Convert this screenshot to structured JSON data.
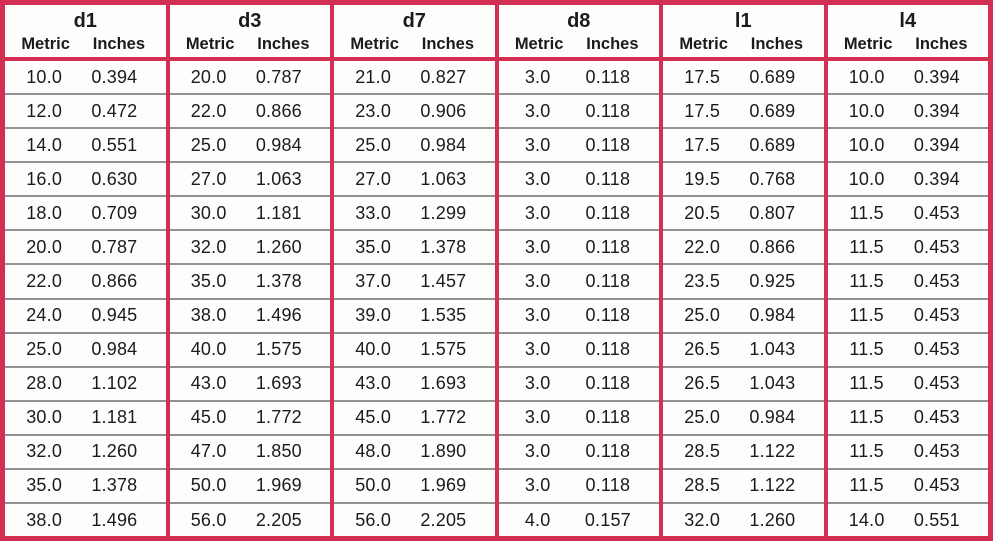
{
  "colors": {
    "border_red": "#d32e53",
    "row_line": "#929292",
    "text": "#1b1b1b",
    "background": "#fdfdfb"
  },
  "table": {
    "sub_headers": [
      "Metric",
      "Inches"
    ],
    "groups": [
      {
        "title": "d1",
        "rows": [
          [
            "10.0",
            "0.394"
          ],
          [
            "12.0",
            "0.472"
          ],
          [
            "14.0",
            "0.551"
          ],
          [
            "16.0",
            "0.630"
          ],
          [
            "18.0",
            "0.709"
          ],
          [
            "20.0",
            "0.787"
          ],
          [
            "22.0",
            "0.866"
          ],
          [
            "24.0",
            "0.945"
          ],
          [
            "25.0",
            "0.984"
          ],
          [
            "28.0",
            "1.102"
          ],
          [
            "30.0",
            "1.181"
          ],
          [
            "32.0",
            "1.260"
          ],
          [
            "35.0",
            "1.378"
          ],
          [
            "38.0",
            "1.496"
          ]
        ]
      },
      {
        "title": "d3",
        "rows": [
          [
            "20.0",
            "0.787"
          ],
          [
            "22.0",
            "0.866"
          ],
          [
            "25.0",
            "0.984"
          ],
          [
            "27.0",
            "1.063"
          ],
          [
            "30.0",
            "1.181"
          ],
          [
            "32.0",
            "1.260"
          ],
          [
            "35.0",
            "1.378"
          ],
          [
            "38.0",
            "1.496"
          ],
          [
            "40.0",
            "1.575"
          ],
          [
            "43.0",
            "1.693"
          ],
          [
            "45.0",
            "1.772"
          ],
          [
            "47.0",
            "1.850"
          ],
          [
            "50.0",
            "1.969"
          ],
          [
            "56.0",
            "2.205"
          ]
        ]
      },
      {
        "title": "d7",
        "rows": [
          [
            "21.0",
            "0.827"
          ],
          [
            "23.0",
            "0.906"
          ],
          [
            "25.0",
            "0.984"
          ],
          [
            "27.0",
            "1.063"
          ],
          [
            "33.0",
            "1.299"
          ],
          [
            "35.0",
            "1.378"
          ],
          [
            "37.0",
            "1.457"
          ],
          [
            "39.0",
            "1.535"
          ],
          [
            "40.0",
            "1.575"
          ],
          [
            "43.0",
            "1.693"
          ],
          [
            "45.0",
            "1.772"
          ],
          [
            "48.0",
            "1.890"
          ],
          [
            "50.0",
            "1.969"
          ],
          [
            "56.0",
            "2.205"
          ]
        ]
      },
      {
        "title": "d8",
        "rows": [
          [
            "3.0",
            "0.118"
          ],
          [
            "3.0",
            "0.118"
          ],
          [
            "3.0",
            "0.118"
          ],
          [
            "3.0",
            "0.118"
          ],
          [
            "3.0",
            "0.118"
          ],
          [
            "3.0",
            "0.118"
          ],
          [
            "3.0",
            "0.118"
          ],
          [
            "3.0",
            "0.118"
          ],
          [
            "3.0",
            "0.118"
          ],
          [
            "3.0",
            "0.118"
          ],
          [
            "3.0",
            "0.118"
          ],
          [
            "3.0",
            "0.118"
          ],
          [
            "3.0",
            "0.118"
          ],
          [
            "4.0",
            "0.157"
          ]
        ]
      },
      {
        "title": "l1",
        "rows": [
          [
            "17.5",
            "0.689"
          ],
          [
            "17.5",
            "0.689"
          ],
          [
            "17.5",
            "0.689"
          ],
          [
            "19.5",
            "0.768"
          ],
          [
            "20.5",
            "0.807"
          ],
          [
            "22.0",
            "0.866"
          ],
          [
            "23.5",
            "0.925"
          ],
          [
            "25.0",
            "0.984"
          ],
          [
            "26.5",
            "1.043"
          ],
          [
            "26.5",
            "1.043"
          ],
          [
            "25.0",
            "0.984"
          ],
          [
            "28.5",
            "1.122"
          ],
          [
            "28.5",
            "1.122"
          ],
          [
            "32.0",
            "1.260"
          ]
        ]
      },
      {
        "title": "l4",
        "rows": [
          [
            "10.0",
            "0.394"
          ],
          [
            "10.0",
            "0.394"
          ],
          [
            "10.0",
            "0.394"
          ],
          [
            "10.0",
            "0.394"
          ],
          [
            "11.5",
            "0.453"
          ],
          [
            "11.5",
            "0.453"
          ],
          [
            "11.5",
            "0.453"
          ],
          [
            "11.5",
            "0.453"
          ],
          [
            "11.5",
            "0.453"
          ],
          [
            "11.5",
            "0.453"
          ],
          [
            "11.5",
            "0.453"
          ],
          [
            "11.5",
            "0.453"
          ],
          [
            "11.5",
            "0.453"
          ],
          [
            "14.0",
            "0.551"
          ]
        ]
      }
    ]
  }
}
